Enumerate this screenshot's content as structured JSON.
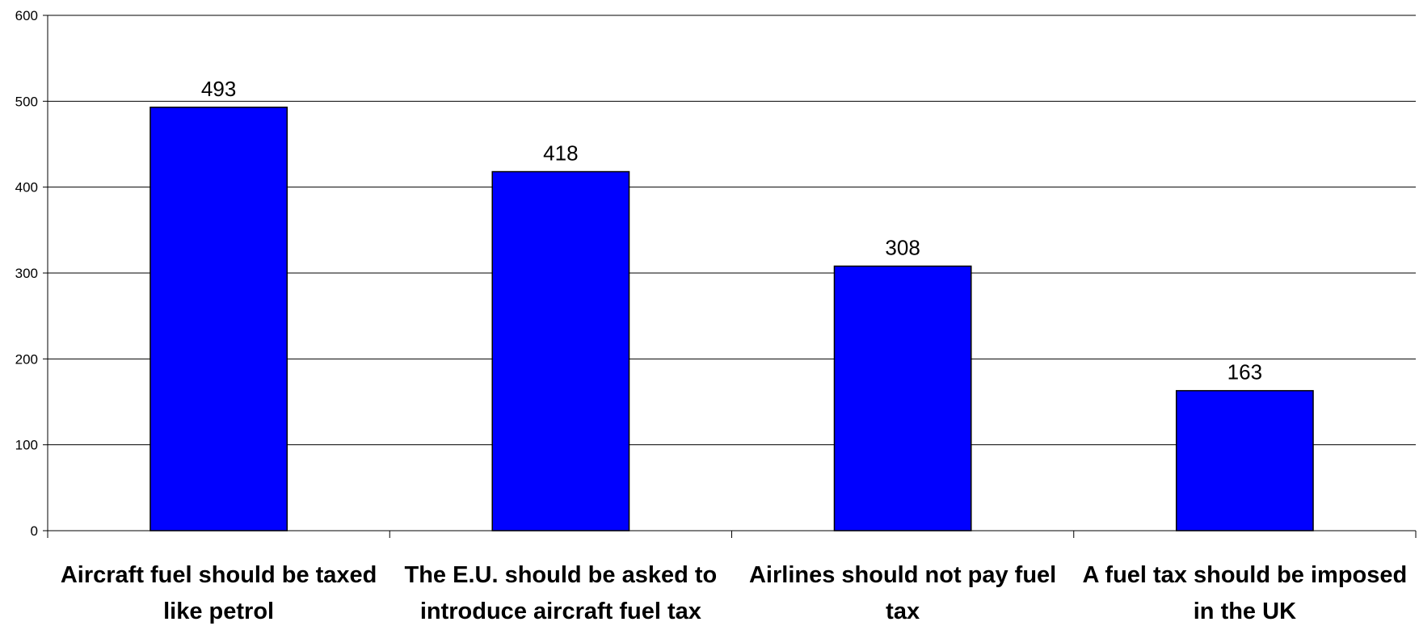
{
  "chart_data": {
    "type": "bar",
    "categories": [
      [
        "Aircraft fuel should be taxed",
        "like petrol"
      ],
      [
        "The E.U. should be asked to",
        "introduce aircraft fuel tax"
      ],
      [
        "Airlines should not pay fuel",
        "tax"
      ],
      [
        "A fuel tax should be imposed",
        "in the UK"
      ]
    ],
    "values": [
      493,
      418,
      308,
      163
    ],
    "data_labels": [
      "493",
      "418",
      "308",
      "163"
    ],
    "ylim": [
      0,
      600
    ],
    "yticks": [
      "0",
      "100",
      "200",
      "300",
      "400",
      "500",
      "600"
    ],
    "grid": true,
    "legend": "none",
    "bar_color": "#0000ff",
    "bar_edge_color": "#000000",
    "title": "",
    "xlabel": "",
    "ylabel": ""
  }
}
